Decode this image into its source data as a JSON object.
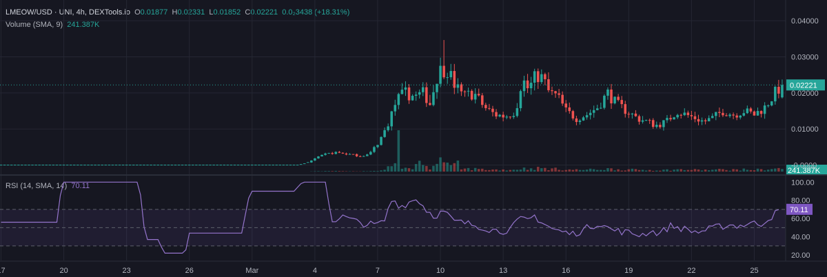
{
  "legend": {
    "symbol": "LMEOW/USD · UNI, 4h, DEXTools.io",
    "o_label": "O",
    "o_value": "0.01877",
    "h_label": "H",
    "h_value": "0.02331",
    "l_label": "L",
    "l_value": "0.01852",
    "c_label": "C",
    "c_value": "0.02221",
    "change": "0.0₂3438 (+18.31%)",
    "volume_label": "Volume (SMA, 9)",
    "volume_value": "241.387K",
    "rsi_label": "RSI (14, SMA, 14)",
    "rsi_value": "70.11"
  },
  "colors": {
    "up": "#26a69a",
    "down": "#ef5350",
    "rsi": "#9575cd",
    "grid": "#252733",
    "background": "#161721"
  },
  "chart_data": [
    {
      "type": "candlestick",
      "name": "price",
      "y_ticks": [
        "0.04000",
        "0.03000",
        "0.02000",
        "0.01000",
        "-0.0000"
      ],
      "y_tick_values": [
        0.04,
        0.03,
        0.02,
        0.01,
        0.0
      ],
      "ylim": [
        -0.002,
        0.045
      ],
      "last_price_label": "0.02221",
      "last_price": 0.02221,
      "x_ticks": [
        "17",
        "20",
        "23",
        "26",
        "Mar",
        "4",
        "7",
        "10",
        "13",
        "16",
        "19",
        "22",
        "25"
      ],
      "x_tick_days": [
        17,
        20,
        23,
        26,
        29,
        32,
        35,
        38,
        41,
        44,
        47,
        50,
        53
      ],
      "xlim_days": [
        16.95,
        54.5
      ],
      "keypoints": [
        [
          17.0,
          0.0
        ],
        [
          31.2,
          0.0
        ],
        [
          31.6,
          0.0005
        ],
        [
          32.0,
          0.0018
        ],
        [
          32.5,
          0.003
        ],
        [
          33.0,
          0.0035
        ],
        [
          33.6,
          0.003
        ],
        [
          34.2,
          0.0025
        ],
        [
          34.6,
          0.003
        ],
        [
          35.0,
          0.006
        ],
        [
          35.3,
          0.009
        ],
        [
          35.6,
          0.013
        ],
        [
          35.9,
          0.018
        ],
        [
          36.3,
          0.02
        ],
        [
          36.8,
          0.019
        ],
        [
          37.2,
          0.02
        ],
        [
          37.5,
          0.017
        ],
        [
          37.9,
          0.026
        ],
        [
          38.3,
          0.027
        ],
        [
          38.7,
          0.022
        ],
        [
          39.1,
          0.019
        ],
        [
          39.6,
          0.02
        ],
        [
          40.1,
          0.016
        ],
        [
          40.6,
          0.014
        ],
        [
          41.1,
          0.0135
        ],
        [
          41.6,
          0.015
        ],
        [
          41.9,
          0.024
        ],
        [
          42.2,
          0.021
        ],
        [
          42.6,
          0.025
        ],
        [
          42.9,
          0.024
        ],
        [
          43.2,
          0.02
        ],
        [
          43.6,
          0.019
        ],
        [
          44.0,
          0.015
        ],
        [
          44.5,
          0.013
        ],
        [
          45.0,
          0.014
        ],
        [
          45.5,
          0.016
        ],
        [
          46.0,
          0.02
        ],
        [
          46.4,
          0.017
        ],
        [
          46.9,
          0.015
        ],
        [
          47.4,
          0.013
        ],
        [
          47.9,
          0.012
        ],
        [
          48.3,
          0.011
        ],
        [
          48.8,
          0.012
        ],
        [
          49.3,
          0.015
        ],
        [
          49.7,
          0.014
        ],
        [
          50.2,
          0.013
        ],
        [
          50.6,
          0.012
        ],
        [
          51.0,
          0.013
        ],
        [
          51.5,
          0.015
        ],
        [
          52.0,
          0.014
        ],
        [
          52.5,
          0.015
        ],
        [
          53.0,
          0.014
        ],
        [
          53.5,
          0.016
        ],
        [
          54.0,
          0.02
        ],
        [
          54.3,
          0.0222
        ]
      ]
    },
    {
      "type": "bar",
      "name": "volume",
      "value_label": "241.387K",
      "last_value": 241387
    },
    {
      "type": "line",
      "name": "rsi",
      "y_ticks": [
        "100.00",
        "80.00",
        "60.00",
        "40.00",
        "20.00"
      ],
      "y_tick_values": [
        100,
        80,
        60,
        40,
        20
      ],
      "ylim": [
        14,
        107
      ],
      "band": [
        30,
        70
      ],
      "midline": 50,
      "last_value": 70.11,
      "keypoints": [
        [
          17.0,
          56
        ],
        [
          19.7,
          56
        ],
        [
          19.9,
          100
        ],
        [
          21.5,
          100
        ],
        [
          22.0,
          100
        ],
        [
          23.6,
          100
        ],
        [
          23.9,
          37
        ],
        [
          24.5,
          37
        ],
        [
          24.8,
          22
        ],
        [
          25.8,
          22
        ],
        [
          26.0,
          44
        ],
        [
          28.5,
          44
        ],
        [
          28.9,
          90
        ],
        [
          31.0,
          90
        ],
        [
          31.4,
          100
        ],
        [
          32.5,
          100
        ],
        [
          32.8,
          58
        ],
        [
          33.4,
          62
        ],
        [
          33.9,
          57
        ],
        [
          34.4,
          54
        ],
        [
          34.9,
          53
        ],
        [
          35.3,
          56
        ],
        [
          35.7,
          82
        ],
        [
          36.1,
          73
        ],
        [
          36.5,
          78
        ],
        [
          36.9,
          82
        ],
        [
          37.3,
          70
        ],
        [
          37.7,
          63
        ],
        [
          38.2,
          68
        ],
        [
          38.6,
          57
        ],
        [
          39.2,
          55
        ],
        [
          39.8,
          52
        ],
        [
          40.4,
          48
        ],
        [
          40.9,
          46
        ],
        [
          41.4,
          49
        ],
        [
          41.8,
          60
        ],
        [
          42.1,
          57
        ],
        [
          42.5,
          63
        ],
        [
          42.9,
          55
        ],
        [
          43.4,
          48
        ],
        [
          43.9,
          45
        ],
        [
          44.3,
          43
        ],
        [
          44.8,
          47
        ],
        [
          45.2,
          52
        ],
        [
          45.7,
          55
        ],
        [
          46.1,
          48
        ],
        [
          46.6,
          46
        ],
        [
          47.1,
          44
        ],
        [
          47.6,
          42
        ],
        [
          48.0,
          46
        ],
        [
          48.5,
          44
        ],
        [
          49.0,
          52
        ],
        [
          49.4,
          50
        ],
        [
          49.9,
          47
        ],
        [
          50.3,
          45
        ],
        [
          50.8,
          48
        ],
        [
          51.3,
          51
        ],
        [
          51.8,
          53
        ],
        [
          52.3,
          52
        ],
        [
          52.8,
          55
        ],
        [
          53.3,
          54
        ],
        [
          53.8,
          62
        ],
        [
          54.3,
          70.1
        ]
      ]
    }
  ]
}
